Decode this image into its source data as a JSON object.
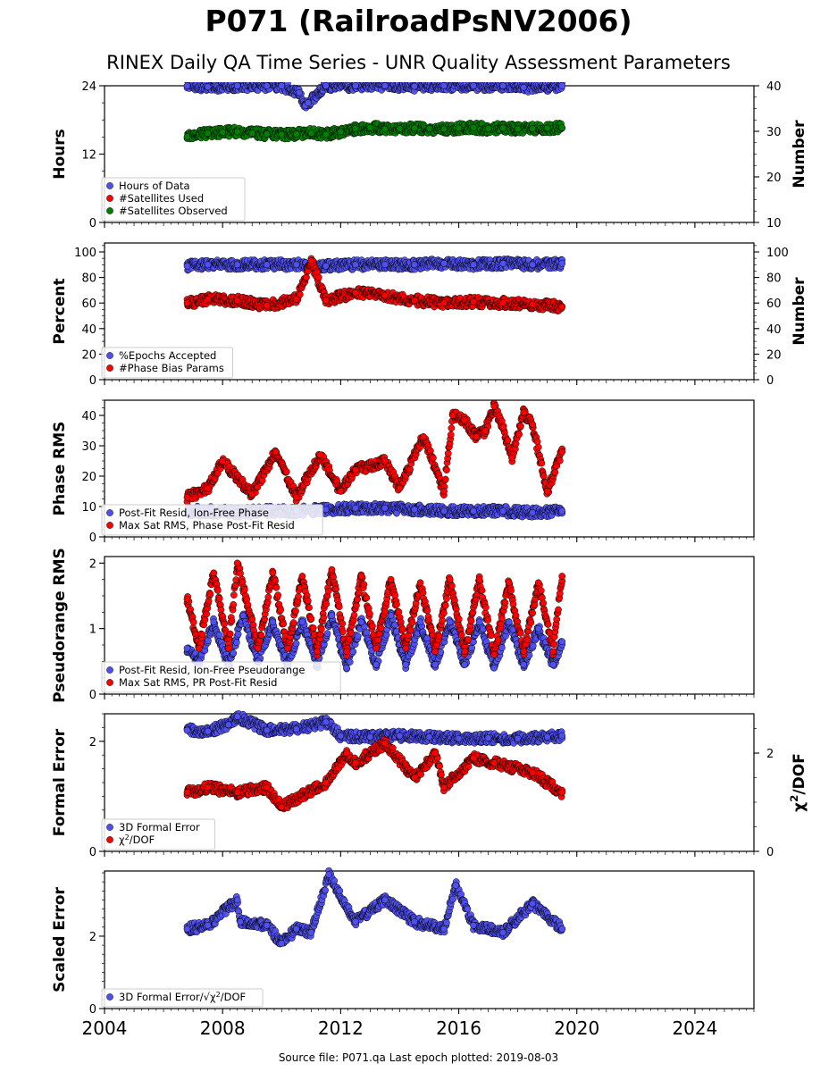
{
  "title": "P071 (RailroadPsNV2006)",
  "subtitle": "RINEX Daily QA Time Series - UNR Quality Assessment Parameters",
  "footer": "Source file: P071.qa Last epoch plotted: 2019-08-03",
  "colors": {
    "blue": "#5050f0",
    "red": "#ff0000",
    "green": "#008000",
    "edge": "#000000"
  },
  "chart_data": [
    {
      "type": "scatter",
      "xlim": [
        2004,
        2026
      ],
      "xticks": [
        2004,
        2008,
        2012,
        2016,
        2020,
        2024
      ],
      "xtick_labels": [],
      "ylabel": "Hours",
      "ylim": [
        0,
        24
      ],
      "yticks": [
        0,
        12,
        24
      ],
      "y2label": "Number",
      "y2lim": [
        10,
        40
      ],
      "y2ticks": [
        10,
        20,
        30,
        40
      ],
      "legend": [
        "Hours of Data",
        "#Satellites Used",
        "#Satellites Observed"
      ],
      "legend_loc": "lower-left",
      "series": [
        {
          "name": "Hours of Data",
          "axis": "left",
          "color": "#5050f0",
          "x": [
            2006.8,
            2007.5,
            2008.5,
            2009.5,
            2010.0,
            2010.6,
            2010.8,
            2010.9,
            2011.5,
            2012.5,
            2013.5,
            2014.5,
            2015.5,
            2016.5,
            2017.5,
            2018.2,
            2019.5
          ],
          "y": [
            24.0,
            23.8,
            24.0,
            24.0,
            24.0,
            22.8,
            20.5,
            21.0,
            24.0,
            24.0,
            24.0,
            23.9,
            24.0,
            24.0,
            24.0,
            23.7,
            24.0
          ]
        },
        {
          "name": "#Satellites Used",
          "axis": "right",
          "color": "#ff0000",
          "x": [
            2009.0
          ],
          "y": [
            30.0
          ]
        },
        {
          "name": "#Satellites Observed",
          "axis": "right",
          "color": "#008000",
          "x": [
            2006.8,
            2007.5,
            2008.0,
            2008.5,
            2009.0,
            2009.5,
            2010.0,
            2010.5,
            2011.0,
            2011.5,
            2012.0,
            2012.5,
            2013.0,
            2013.5,
            2014.0,
            2014.5,
            2015.0,
            2015.5,
            2016.0,
            2016.5,
            2017.0,
            2017.5,
            2018.0,
            2018.5,
            2019.0,
            2019.5
          ],
          "y": [
            28.8,
            29.6,
            29.8,
            29.9,
            29.6,
            29.4,
            29.3,
            29.4,
            29.6,
            29.3,
            29.9,
            30.6,
            30.8,
            30.5,
            30.6,
            30.7,
            30.6,
            30.5,
            30.7,
            30.8,
            30.6,
            30.7,
            30.5,
            30.6,
            30.7,
            30.8
          ]
        }
      ]
    },
    {
      "type": "scatter",
      "xlim": [
        2004,
        2026
      ],
      "xticks": [
        2004,
        2008,
        2012,
        2016,
        2020,
        2024
      ],
      "xtick_labels": [],
      "ylabel": "Percent",
      "ylim": [
        0,
        107
      ],
      "yticks": [
        0,
        20,
        40,
        60,
        80,
        100
      ],
      "y2label": "Number",
      "y2lim": [
        0,
        107
      ],
      "y2ticks": [
        0,
        20,
        40,
        60,
        80,
        100
      ],
      "legend": [
        "%Epochs Accepted",
        "#Phase Bias Params"
      ],
      "legend_loc": "lower-left",
      "series": [
        {
          "name": "%Epochs Accepted",
          "axis": "left",
          "color": "#5050f0",
          "x": [
            2006.8,
            2007.5,
            2008.5,
            2009.5,
            2010.5,
            2011.5,
            2012.5,
            2013.5,
            2014.5,
            2015.5,
            2016.5,
            2017.5,
            2018.5,
            2019.5
          ],
          "y": [
            89,
            90,
            90,
            90,
            90,
            89,
            90,
            90,
            90,
            91,
            90,
            91,
            90,
            91
          ]
        },
        {
          "name": "#Phase Bias Params",
          "axis": "right",
          "color": "#ff0000",
          "x": [
            2006.8,
            2007.5,
            2008.5,
            2009.5,
            2010.5,
            2011.0,
            2011.5,
            2012.5,
            2013.5,
            2014.5,
            2015.5,
            2016.5,
            2017.5,
            2018.5,
            2019.5
          ],
          "y": [
            60,
            63,
            62,
            58,
            63,
            93,
            62,
            68,
            66,
            62,
            60,
            61,
            60,
            59,
            57
          ]
        }
      ]
    },
    {
      "type": "scatter",
      "xlim": [
        2004,
        2026
      ],
      "xticks": [
        2004,
        2008,
        2012,
        2016,
        2020,
        2024
      ],
      "xtick_labels": [],
      "ylabel": "Phase RMS",
      "ylim": [
        0,
        45
      ],
      "yticks": [
        0,
        10,
        20,
        30,
        40
      ],
      "legend": [
        "Post-Fit Resid, Ion-Free Phase",
        "Max Sat RMS, Phase Post-Fit Resid"
      ],
      "legend_loc": "lower-left",
      "series": [
        {
          "name": "Post-Fit Resid, Ion-Free Phase",
          "color": "#5050f0",
          "x": [
            2006.8,
            2007.5,
            2008.5,
            2009.5,
            2010.5,
            2011.5,
            2012.5,
            2013.5,
            2014.5,
            2015.5,
            2016.5,
            2017.5,
            2018.5,
            2019.5
          ],
          "y": [
            8.5,
            8.5,
            8.0,
            8.5,
            8.5,
            9.0,
            9.5,
            9.5,
            9.0,
            8.5,
            8.5,
            8.5,
            8.0,
            8.5
          ]
        },
        {
          "name": "Max Sat RMS, Phase Post-Fit Resid",
          "color": "#ff0000",
          "x": [
            2006.8,
            2007.5,
            2008.0,
            2009.0,
            2009.8,
            2010.5,
            2011.3,
            2012.0,
            2012.5,
            2013.5,
            2014.0,
            2014.8,
            2015.5,
            2015.8,
            2016.2,
            2016.6,
            2016.9,
            2017.2,
            2017.5,
            2017.8,
            2018.2,
            2018.5,
            2019.0,
            2019.5
          ],
          "y": [
            13,
            16,
            25,
            14,
            28,
            13,
            27,
            15,
            22,
            25,
            16,
            33,
            15,
            40,
            38.5,
            33,
            35,
            43,
            36,
            26,
            41,
            37,
            15,
            28
          ]
        }
      ]
    },
    {
      "type": "scatter",
      "xlim": [
        2004,
        2026
      ],
      "xticks": [
        2004,
        2008,
        2012,
        2016,
        2020,
        2024
      ],
      "xtick_labels": [],
      "ylabel": "Pseudorange RMS",
      "ylim": [
        0,
        2.1
      ],
      "yticks": [
        0,
        1,
        2
      ],
      "legend": [
        "Post-Fit Resid, Ion-Free Pseudorange",
        "Max Sat RMS, PR Post-Fit Resid"
      ],
      "legend_loc": "lower-left",
      "series": [
        {
          "name": "Post-Fit Resid, Ion-Free Pseudorange",
          "color": "#5050f0",
          "x": [
            2006.8,
            2007.2,
            2007.7,
            2008.2,
            2008.7,
            2009.2,
            2009.7,
            2010.2,
            2010.7,
            2011.2,
            2011.7,
            2012.2,
            2012.7,
            2013.2,
            2013.7,
            2014.2,
            2014.7,
            2015.2,
            2015.7,
            2016.2,
            2016.7,
            2017.2,
            2017.7,
            2018.2,
            2018.7,
            2019.2,
            2019.5
          ],
          "y": [
            0.7,
            0.5,
            1.1,
            0.45,
            1.2,
            0.5,
            1.1,
            0.45,
            1.1,
            0.45,
            1.2,
            0.4,
            1.1,
            0.45,
            1.2,
            0.45,
            1.1,
            0.45,
            1.1,
            0.45,
            1.1,
            0.4,
            1.1,
            0.45,
            1.0,
            0.45,
            0.8
          ]
        },
        {
          "name": "Max Sat RMS, PR Post-Fit Resid",
          "color": "#ff0000",
          "x": [
            2006.8,
            2007.2,
            2007.7,
            2008.2,
            2008.5,
            2009.2,
            2009.7,
            2010.2,
            2010.7,
            2011.2,
            2011.7,
            2012.2,
            2012.7,
            2013.2,
            2013.7,
            2014.2,
            2014.7,
            2015.2,
            2015.7,
            2016.2,
            2016.7,
            2017.2,
            2017.7,
            2018.2,
            2018.7,
            2019.2,
            2019.5
          ],
          "y": [
            1.45,
            0.7,
            1.85,
            0.7,
            2.0,
            0.7,
            1.85,
            0.7,
            1.8,
            0.65,
            1.9,
            0.65,
            1.8,
            0.7,
            1.75,
            0.7,
            1.7,
            0.65,
            1.75,
            0.65,
            1.75,
            0.6,
            1.7,
            0.65,
            1.7,
            0.65,
            1.8
          ]
        }
      ]
    },
    {
      "type": "scatter",
      "xlim": [
        2004,
        2026
      ],
      "xticks": [
        2004,
        2008,
        2012,
        2016,
        2020,
        2024
      ],
      "xtick_labels": [],
      "ylabel": "Formal Error",
      "ylim": [
        0,
        2.5
      ],
      "yticks": [
        0,
        2
      ],
      "y2label": "χ²/DOF",
      "y2lim": [
        0,
        2.8
      ],
      "y2ticks": [
        0,
        2
      ],
      "legend": [
        "3D Formal Error",
        "χ²/DOF"
      ],
      "legend_loc": "lower-left",
      "series": [
        {
          "name": "3D Formal Error",
          "axis": "left",
          "color": "#5050f0",
          "x": [
            2006.8,
            2007.5,
            2008.2,
            2008.5,
            2009.5,
            2010.5,
            2011.5,
            2012.0,
            2013.0,
            2014.0,
            2015.0,
            2016.0,
            2017.0,
            2018.0,
            2019.0,
            2019.5
          ],
          "y": [
            2.2,
            2.18,
            2.3,
            2.45,
            2.2,
            2.22,
            2.35,
            2.1,
            2.08,
            2.1,
            2.08,
            2.05,
            2.06,
            2.05,
            2.08,
            2.1
          ]
        },
        {
          "name": "χ²/DOF",
          "axis": "right",
          "color": "#ff0000",
          "x": [
            2006.8,
            2007.5,
            2008.5,
            2009.5,
            2010.0,
            2011.5,
            2012.2,
            2012.5,
            2013.5,
            2014.5,
            2015.2,
            2015.5,
            2016.5,
            2017.2,
            2018.5,
            2019.5
          ],
          "y": [
            1.2,
            1.3,
            1.2,
            1.3,
            0.9,
            1.4,
            2.0,
            1.8,
            2.2,
            1.5,
            2.0,
            1.3,
            1.9,
            1.8,
            1.6,
            1.2
          ]
        }
      ]
    },
    {
      "type": "scatter",
      "xlim": [
        2004,
        2026
      ],
      "xticks": [
        2004,
        2008,
        2012,
        2016,
        2020,
        2024
      ],
      "xtick_labels": [
        "2004",
        "2008",
        "2012",
        "2016",
        "2020",
        "2024"
      ],
      "ylabel": "Scaled Error",
      "ylim": [
        0,
        3.8
      ],
      "yticks": [
        0,
        2
      ],
      "legend": [
        "3D Formal Error/√χ²/DOF"
      ],
      "legend_loc": "lower-left",
      "series": [
        {
          "name": "3D Formal Error/√χ²/DOF",
          "color": "#5050f0",
          "x": [
            2006.8,
            2007.5,
            2008.5,
            2008.6,
            2009.5,
            2010.0,
            2010.5,
            2011.0,
            2011.6,
            2012.5,
            2013.5,
            2014.5,
            2015.5,
            2015.9,
            2016.5,
            2017.5,
            2018.5,
            2019.5
          ],
          "y": [
            2.2,
            2.3,
            3.0,
            2.4,
            2.3,
            1.8,
            2.2,
            2.1,
            3.7,
            2.4,
            3.0,
            2.4,
            2.2,
            3.4,
            2.3,
            2.1,
            2.9,
            2.2
          ]
        }
      ]
    }
  ]
}
